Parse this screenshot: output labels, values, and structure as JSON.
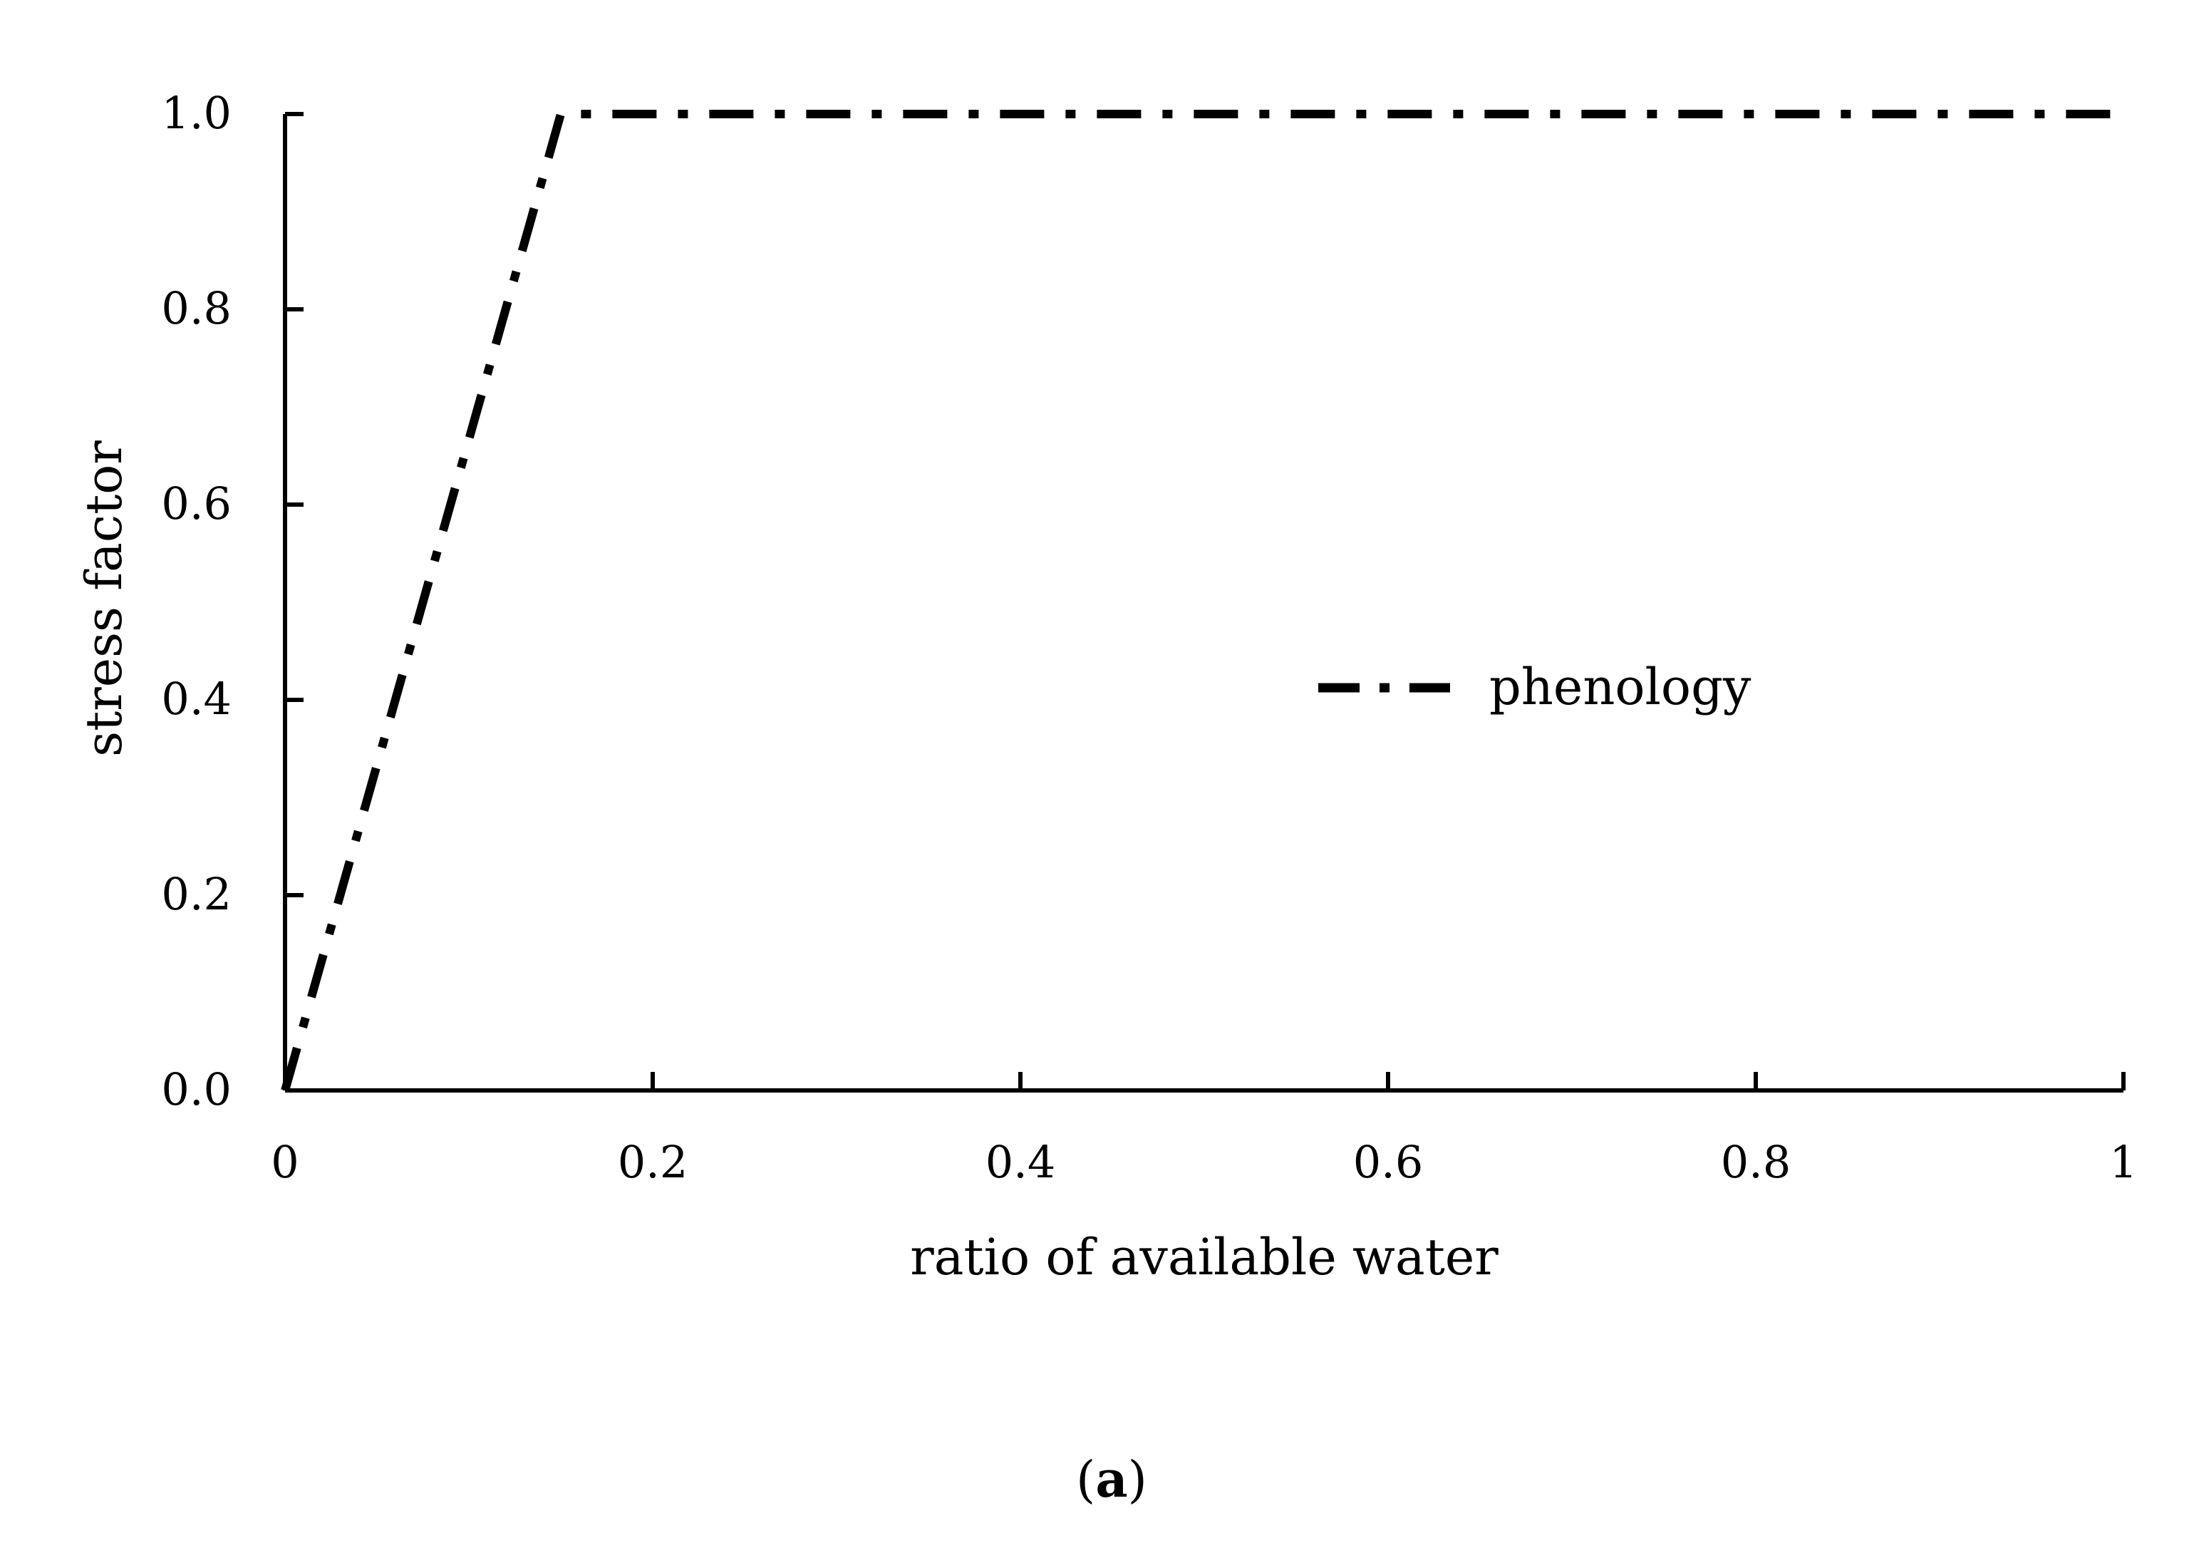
{
  "chart_data": {
    "type": "line",
    "title": "",
    "xlabel": "ratio of available water",
    "ylabel": "stress factor",
    "xlim": [
      0,
      1
    ],
    "ylim": [
      0,
      1
    ],
    "x_ticks": [
      0,
      0.2,
      0.4,
      0.6,
      0.8,
      1
    ],
    "x_tick_labels": [
      "0",
      "0.2",
      "0.4",
      "0.6",
      "0.8",
      "1"
    ],
    "y_ticks": [
      0,
      0.2,
      0.4,
      0.6,
      0.8,
      1.0
    ],
    "y_tick_labels": [
      "0.0",
      "0.2",
      "0.4",
      "0.6",
      "0.8",
      "1.0"
    ],
    "grid": false,
    "legend_position": "center-right",
    "series": [
      {
        "name": "phenology",
        "line_style": "dash-dot",
        "color": "#000000",
        "x": [
          0,
          0.15,
          1
        ],
        "y": [
          0,
          1.0,
          1.0
        ]
      }
    ],
    "caption": {
      "open": "(",
      "letter": "a",
      "close": ")"
    }
  }
}
